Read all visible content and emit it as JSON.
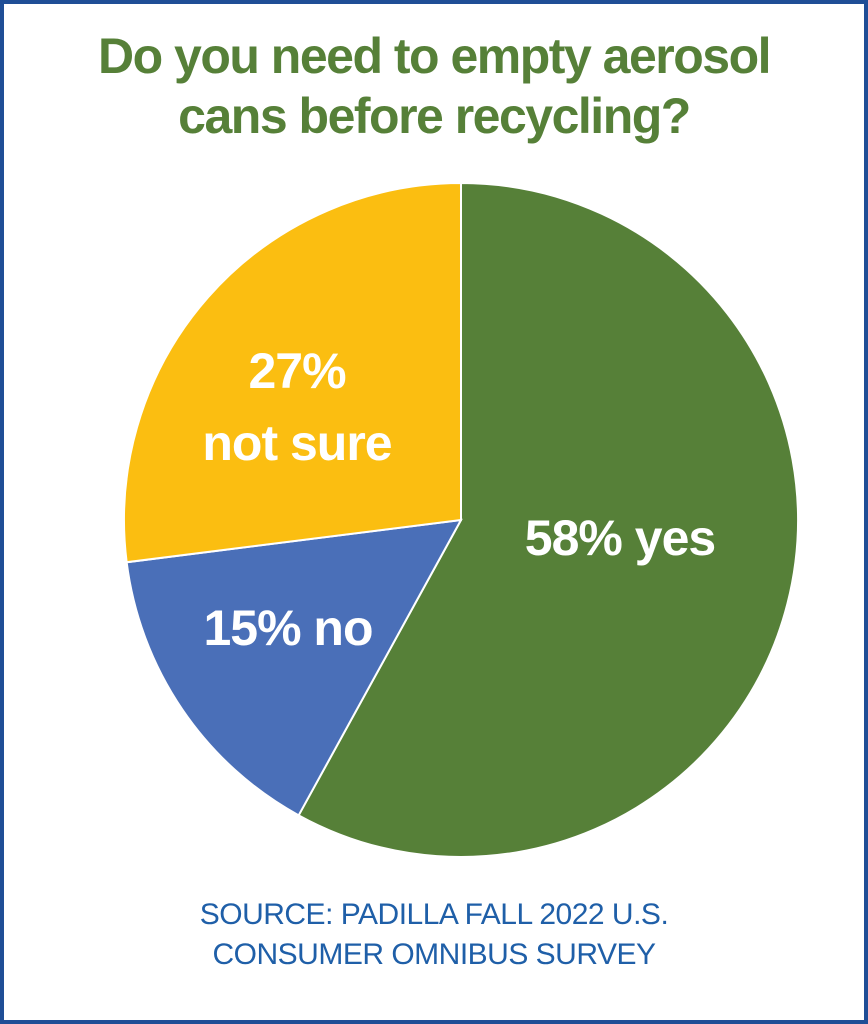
{
  "chart_data": {
    "type": "pie",
    "title_lines": [
      "Do you need to empty aerosol",
      "cans before recycling?"
    ],
    "slices": [
      {
        "value": 58,
        "label_lines": [
          "58% yes"
        ],
        "color": "#568038"
      },
      {
        "value": 15,
        "label_lines": [
          "15% no"
        ],
        "color": "#4a6fb8"
      },
      {
        "value": 27,
        "label_lines": [
          "27%",
          "not sure"
        ],
        "color": "#fbbe11"
      }
    ],
    "slice_order": "clockwise from top",
    "source_lines": [
      "SOURCE: PADILLA FALL 2022 U.S.",
      "CONSUMER OMNIBUS SURVEY"
    ]
  },
  "colors": {
    "border": "#1f4e96",
    "title": "#568038",
    "source": "#1f5fa8",
    "slice_border": "#ffffff"
  }
}
